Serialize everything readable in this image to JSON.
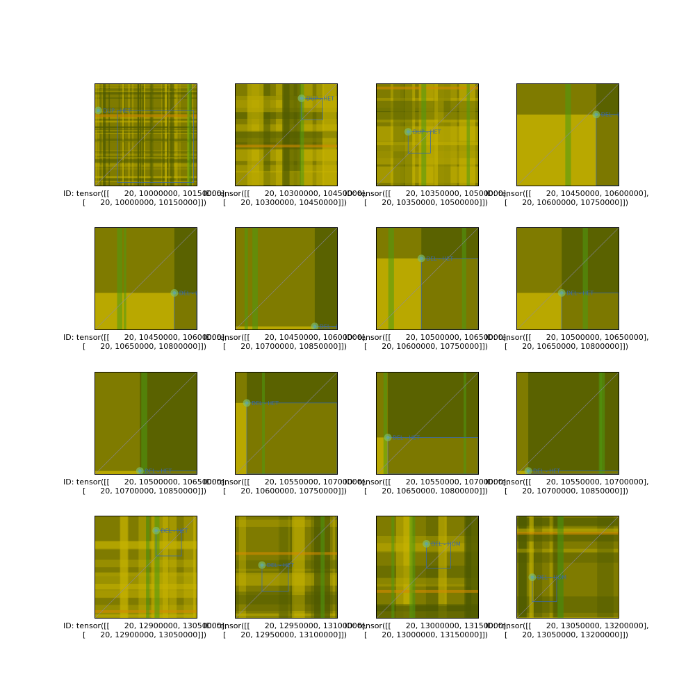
{
  "chart_data": {
    "type": "heatmap",
    "grid": "4x4",
    "colors": {
      "base_yellow": "#c8b400",
      "dark_olive": "#4e5a00",
      "mid_olive": "#7f7b00",
      "green_stripe": "#4f9a10",
      "orange_stripe": "#d48a00",
      "diagonal": "#8a8ab0",
      "marker": "#7ebf6f",
      "box": "#3a6aa8"
    },
    "panels": [
      {
        "caption": "ID: tensor([[      20, 10000000, 10150000],\n        [      20, 10000000, 10150000]])",
        "marker_label": "DUP - HET",
        "marker": [
          0.03,
          0.26
        ],
        "box": [
          0.22,
          0.26,
          0.97,
          0.97
        ],
        "pattern": "noisy"
      },
      {
        "caption": "ID: tensor([[      20, 10300000, 10450000],\n        [      20, 10300000, 10450000]])",
        "marker_label": "DUP - HET",
        "marker": [
          0.65,
          0.14
        ],
        "box": [
          0.65,
          0.14,
          0.86,
          0.35
        ],
        "pattern": "bands"
      },
      {
        "caption": "ID: tensor([[      20, 10350000, 10500000],\n        [      20, 10350000, 10500000]])",
        "marker_label": "DUP - HET",
        "marker": [
          0.31,
          0.47
        ],
        "box": [
          0.31,
          0.47,
          0.53,
          0.68
        ],
        "pattern": "bands"
      },
      {
        "caption": "ID: tensor([[      20, 10450000, 10600000],\n        [      20, 10600000, 10750000]])",
        "marker_label": "DEL - H",
        "marker": [
          0.78,
          0.3
        ],
        "box": [
          0.78,
          0.3,
          1.0,
          1.0
        ],
        "pattern": "blocks"
      },
      {
        "caption": "ID: tensor([[      20, 10450000, 10600000],\n        [      20, 10650000, 10800000]])",
        "marker_label": "DEL - H",
        "marker": [
          0.78,
          0.64
        ],
        "box": [
          0.78,
          0.64,
          1.0,
          1.0
        ],
        "pattern": "blocks"
      },
      {
        "caption": "ID: tensor([[      20, 10450000, 10600000],\n        [      20, 10700000, 10850000]])",
        "marker_label": "DEL - H",
        "marker": [
          0.78,
          0.97
        ],
        "box": [
          0.78,
          0.97,
          1.0,
          1.0
        ],
        "pattern": "blocks"
      },
      {
        "caption": "ID: tensor([[      20, 10500000, 10650000],\n        [      20, 10600000, 10750000]])",
        "marker_label": "DEL - HET",
        "marker": [
          0.44,
          0.3
        ],
        "box": [
          0.44,
          0.3,
          1.0,
          1.0
        ],
        "pattern": "blocks"
      },
      {
        "caption": "ID: tensor([[      20, 10500000, 10650000],\n        [      20, 10650000, 10800000]])",
        "marker_label": "DEL - HET",
        "marker": [
          0.44,
          0.64
        ],
        "box": [
          0.44,
          0.64,
          1.0,
          1.0
        ],
        "pattern": "blocks"
      },
      {
        "caption": "ID: tensor([[      20, 10500000, 10650000],\n        [      20, 10700000, 10850000]])",
        "marker_label": "DEL - HET",
        "marker": [
          0.44,
          0.97
        ],
        "box": [
          0.44,
          0.97,
          1.0,
          1.0
        ],
        "pattern": "blocks"
      },
      {
        "caption": "ID: tensor([[      20, 10550000, 10700000],\n        [      20, 10600000, 10750000]])",
        "marker_label": "DEL - HET",
        "marker": [
          0.11,
          0.3
        ],
        "box": [
          0.11,
          0.3,
          1.0,
          1.0
        ],
        "pattern": "blocks"
      },
      {
        "caption": "ID: tensor([[      20, 10550000, 10700000],\n        [      20, 10650000, 10800000]])",
        "marker_label": "DEL - HET",
        "marker": [
          0.11,
          0.64
        ],
        "box": [
          0.11,
          0.64,
          1.0,
          1.0
        ],
        "pattern": "blocks"
      },
      {
        "caption": "ID: tensor([[      20, 10550000, 10700000],\n        [      20, 10700000, 10850000]])",
        "marker_label": "DEL - HET",
        "marker": [
          0.11,
          0.97
        ],
        "box": [
          0.11,
          0.97,
          1.0,
          1.0
        ],
        "pattern": "blocks"
      },
      {
        "caption": "ID: tensor([[      20, 12900000, 13050000],\n        [      20, 12900000, 13050000]])",
        "marker_label": "DEL - HET",
        "marker": [
          0.6,
          0.14
        ],
        "box": [
          0.6,
          0.14,
          0.85,
          0.39
        ],
        "pattern": "bands"
      },
      {
        "caption": "ID: tensor([[      20, 12950000, 13100000],\n        [      20, 12950000, 13100000]])",
        "marker_label": "DEL - HET",
        "marker": [
          0.26,
          0.48
        ],
        "box": [
          0.26,
          0.48,
          0.52,
          0.74
        ],
        "pattern": "bands"
      },
      {
        "caption": "ID: tensor([[      20, 13000000, 13150000],\n        [      20, 13000000, 13150000]])",
        "marker_label": "DEL - HOM",
        "marker": [
          0.49,
          0.27
        ],
        "box": [
          0.49,
          0.27,
          0.73,
          0.51
        ],
        "pattern": "bands"
      },
      {
        "caption": "ID: tensor([[      20, 13050000, 13200000],\n        [      20, 13050000, 13200000]])",
        "marker_label": "DEL - HOM",
        "marker": [
          0.15,
          0.6
        ],
        "box": [
          0.15,
          0.6,
          0.39,
          0.84
        ],
        "pattern": "bands"
      }
    ]
  }
}
